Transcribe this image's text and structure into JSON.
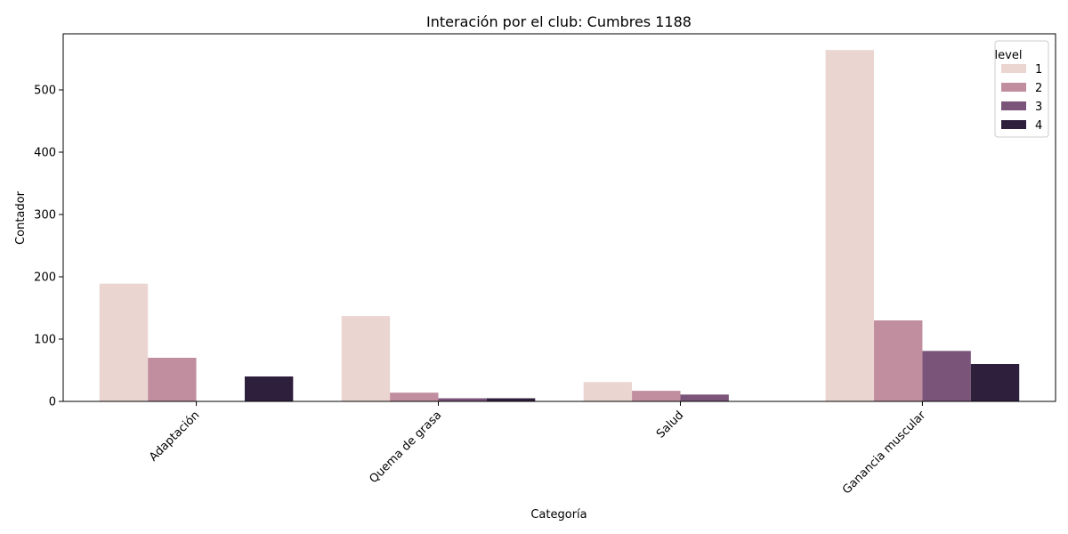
{
  "chart_data": {
    "type": "bar",
    "title": "Interación por el club: Cumbres 1188",
    "xlabel": "Categoría",
    "ylabel": "Contador",
    "categories": [
      "Adaptación",
      "Quema de grasa",
      "Salud",
      "Ganancia muscular"
    ],
    "series": [
      {
        "name": "1",
        "color": "#ead5d1",
        "values": [
          189,
          137,
          31,
          564
        ]
      },
      {
        "name": "2",
        "color": "#c18e9f",
        "values": [
          70,
          14,
          17,
          130
        ]
      },
      {
        "name": "3",
        "color": "#7b5579",
        "values": [
          0,
          5,
          11,
          81
        ]
      },
      {
        "name": "4",
        "color": "#2e1f3c",
        "values": [
          40,
          5,
          0,
          60
        ]
      }
    ],
    "ylim": [
      0,
      590
    ],
    "yticks": [
      0,
      100,
      200,
      300,
      400,
      500
    ],
    "grid": false,
    "legend": {
      "title": "level",
      "placement": "top-right"
    }
  }
}
